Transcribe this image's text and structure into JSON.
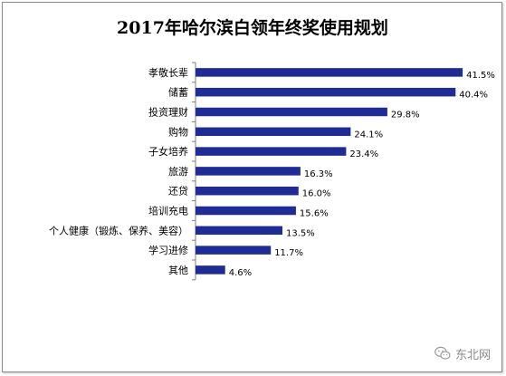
{
  "chart_data": {
    "type": "bar",
    "orientation": "horizontal",
    "title": "2017年哈尔滨白领年终奖使用规划",
    "categories": [
      "孝敬长辈",
      "储蓄",
      "投资理财",
      "购物",
      "子女培养",
      "旅游",
      "还贷",
      "培训充电",
      "个人健康（锻炼、保养、美容）",
      "学习进修",
      "其他"
    ],
    "values": [
      41.5,
      40.4,
      29.8,
      24.1,
      23.4,
      16.3,
      16.0,
      15.6,
      13.5,
      11.7,
      4.6
    ],
    "value_labels": [
      "41.5%",
      "40.4%",
      "29.8%",
      "24.1%",
      "23.4%",
      "16.3%",
      "16.0%",
      "15.6%",
      "13.5%",
      "11.7%",
      "4.6%"
    ],
    "xlim": [
      0,
      45
    ],
    "xlabel": "",
    "ylabel": "",
    "grid": false,
    "legend": "none",
    "bar_color": "#1f2c96"
  },
  "watermark": {
    "text": "东北网",
    "icon": "wechat-logo-icon"
  }
}
